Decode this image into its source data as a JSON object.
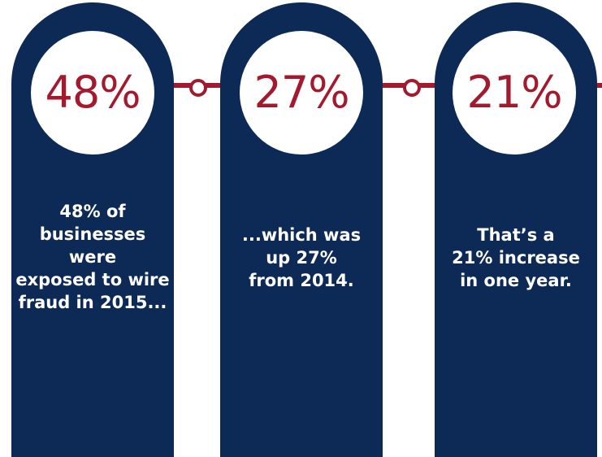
{
  "colors": {
    "navy": "#0c2a55",
    "crimson": "#a31a2e",
    "white": "#ffffff"
  },
  "stats": [
    {
      "value": "48%",
      "caption": "48% of\nbusinesses\nwere\nexposed to wire\nfraud in 2015..."
    },
    {
      "value": "27%",
      "caption": "...which was\nup 27%\nfrom 2014."
    },
    {
      "value": "21%",
      "caption": "That’s a\n21% increase\nin one year."
    }
  ]
}
